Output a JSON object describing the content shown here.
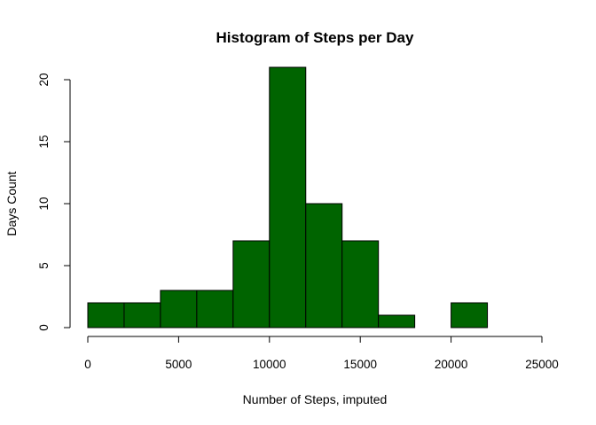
{
  "chart_data": {
    "type": "bar",
    "subtype": "histogram",
    "title": "Histogram of Steps per Day",
    "xlabel": "Number of Steps, imputed",
    "ylabel": "Days Count",
    "bar_color": "#006400",
    "bin_width": 2000,
    "bins": [
      {
        "start": 0,
        "end": 2000,
        "count": 2
      },
      {
        "start": 2000,
        "end": 4000,
        "count": 2
      },
      {
        "start": 4000,
        "end": 6000,
        "count": 3
      },
      {
        "start": 6000,
        "end": 8000,
        "count": 3
      },
      {
        "start": 8000,
        "end": 10000,
        "count": 7
      },
      {
        "start": 10000,
        "end": 12000,
        "count": 21
      },
      {
        "start": 12000,
        "end": 14000,
        "count": 10
      },
      {
        "start": 14000,
        "end": 16000,
        "count": 7
      },
      {
        "start": 16000,
        "end": 18000,
        "count": 1
      },
      {
        "start": 18000,
        "end": 20000,
        "count": 0
      },
      {
        "start": 20000,
        "end": 22000,
        "count": 2
      }
    ],
    "xlim": [
      0,
      25000
    ],
    "ylim": [
      0,
      20
    ],
    "x_ticks": [
      0,
      5000,
      10000,
      15000,
      20000,
      25000
    ],
    "y_ticks": [
      0,
      5,
      10,
      15,
      20
    ],
    "grid": false,
    "legend": "none"
  }
}
